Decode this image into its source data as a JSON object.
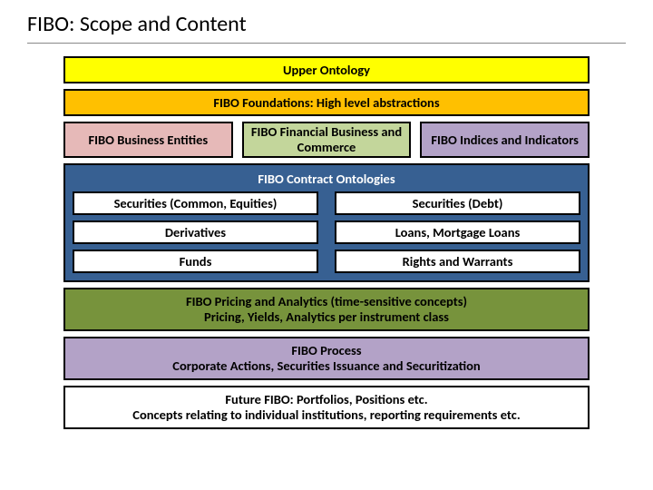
{
  "title": "FIBO: Scope and Content",
  "colors": {
    "upper": "#ffff00",
    "foundations": "#ffc000",
    "business_entities": "#e6b9b8",
    "financial_commerce": "#c3d69b",
    "indices": "#b3a2c7",
    "contract_bg": "#376092",
    "contract_title": "#ffffff",
    "pricing": "#77933c",
    "process": "#b3a2c7",
    "future": "#ffffff",
    "cell_bg": "#ffffff",
    "border": "#000000"
  },
  "blocks": {
    "upper": "Upper Ontology",
    "foundations": "FIBO Foundations: High level abstractions",
    "business_entities": "FIBO Business Entities",
    "financial_commerce": "FIBO Financial Business and Commerce",
    "indices": "FIBO Indices and Indicators",
    "contract_title": "FIBO Contract Ontologies",
    "contract_cells": [
      "Securities (Common, Equities)",
      "Securities (Debt)",
      "Derivatives",
      "Loans, Mortgage Loans",
      "Funds",
      "Rights and Warrants"
    ],
    "pricing_l1": "FIBO Pricing and Analytics (time-sensitive concepts)",
    "pricing_l2": "Pricing, Yields, Analytics per instrument class",
    "process_l1": "FIBO Process",
    "process_l2": "Corporate Actions, Securities Issuance and Securitization",
    "future_l1": "Future FIBO: Portfolios, Positions etc.",
    "future_l2": "Concepts relating to individual institutions, reporting requirements etc."
  }
}
